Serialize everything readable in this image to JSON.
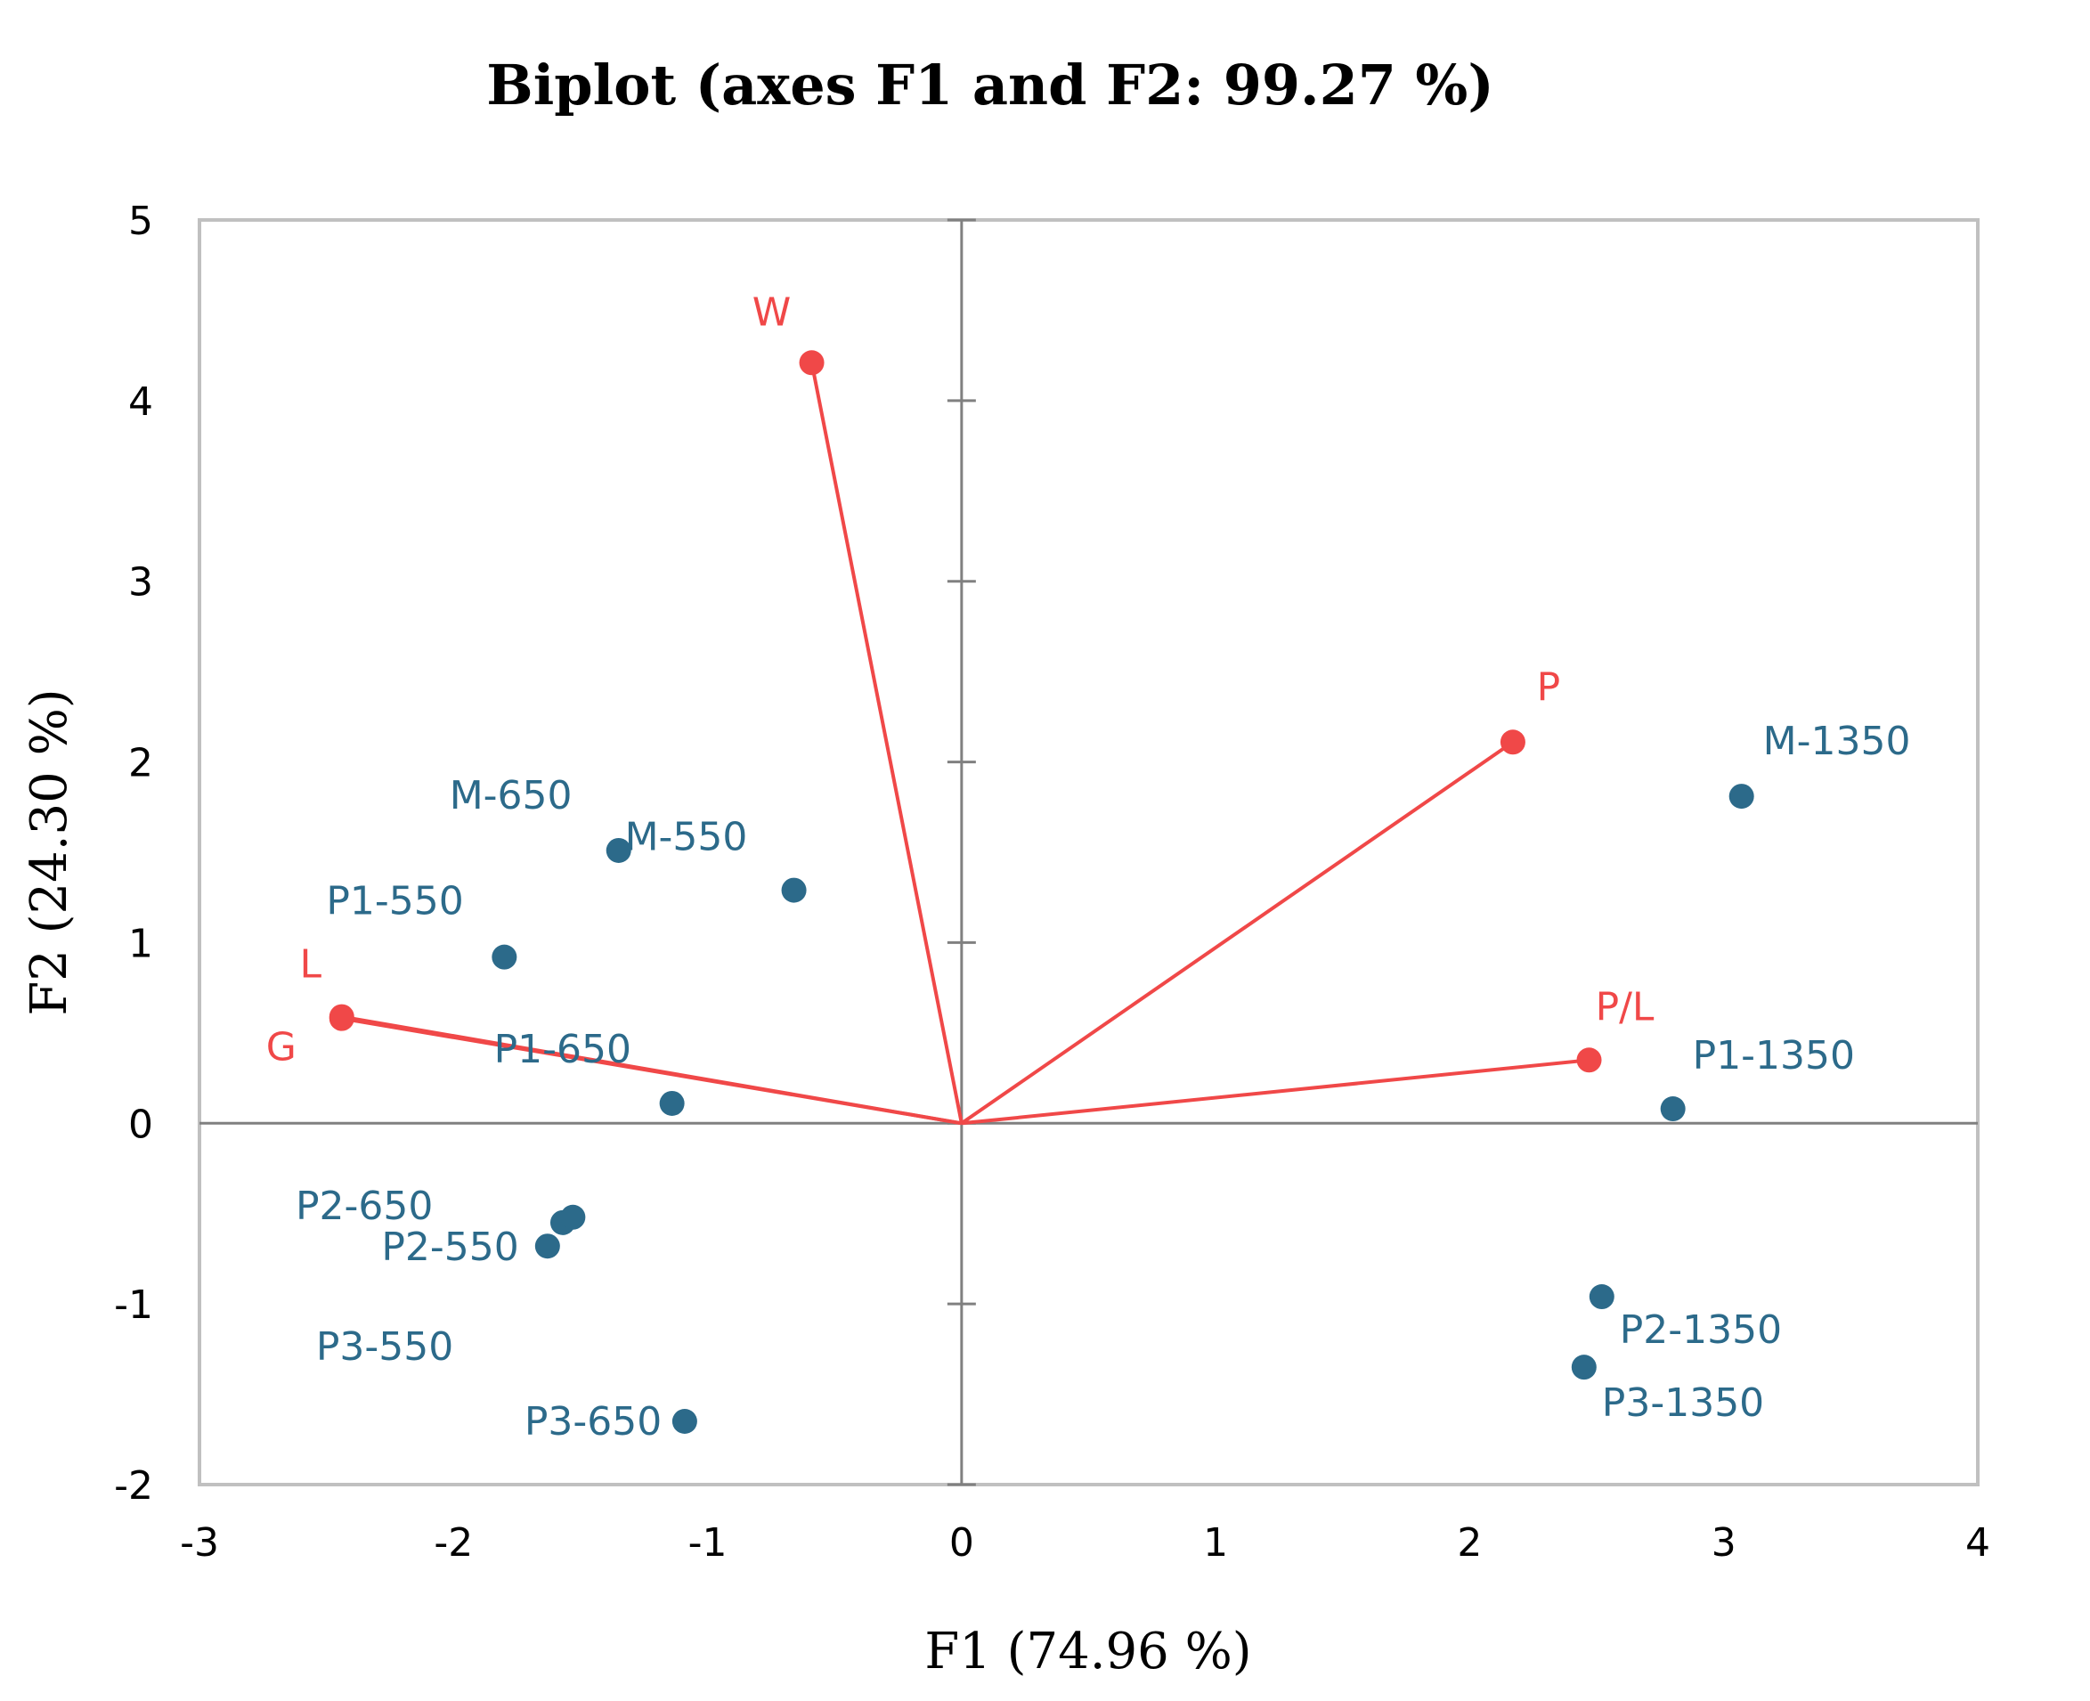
{
  "chart_data": {
    "type": "scatter",
    "title": "Biplot (axes F1 and F2: 99.27 %)",
    "xlabel": "F1 (74.96 %)",
    "ylabel": "F2 (24.30 %)",
    "xlim": [
      -3,
      4
    ],
    "ylim": [
      -2,
      5
    ],
    "xticks": [
      "-3",
      "-2",
      "-1",
      "0",
      "1",
      "2",
      "3",
      "4"
    ],
    "yticks": [
      "-2",
      "-1",
      "0",
      "1",
      "2",
      "3",
      "4",
      "5"
    ],
    "colors": {
      "observations": "#2c6a8a",
      "variables": "#f04848",
      "axes": "#808080",
      "frame": "#c0c0c0"
    },
    "observations": [
      {
        "label": "M-650",
        "x": -1.35,
        "y": 1.51
      },
      {
        "label": "M-550",
        "x": -0.66,
        "y": 1.29
      },
      {
        "label": "P1-550",
        "x": -1.8,
        "y": 0.92
      },
      {
        "label": "P1-650",
        "x": -1.14,
        "y": 0.11
      },
      {
        "label": "P2-650",
        "x": -1.57,
        "y": -0.55
      },
      {
        "label": "P2-550",
        "x": -1.53,
        "y": -0.52
      },
      {
        "label": "P3-550",
        "x": -1.63,
        "y": -0.68
      },
      {
        "label": "P3-650",
        "x": -1.09,
        "y": -1.65
      },
      {
        "label": "M-1350",
        "x": 3.07,
        "y": 1.81
      },
      {
        "label": "P1-1350",
        "x": 2.8,
        "y": 0.08
      },
      {
        "label": "P2-1350",
        "x": 2.52,
        "y": -0.96
      },
      {
        "label": "P3-1350",
        "x": 2.45,
        "y": -1.35
      }
    ],
    "variables": [
      {
        "label": "W",
        "x": -0.59,
        "y": 4.21
      },
      {
        "label": "P",
        "x": 2.17,
        "y": 2.11
      },
      {
        "label": "P/L",
        "x": 2.47,
        "y": 0.35
      },
      {
        "label": "L",
        "x": -2.44,
        "y": 0.59
      },
      {
        "label": "G",
        "x": -2.44,
        "y": 0.58
      }
    ]
  }
}
